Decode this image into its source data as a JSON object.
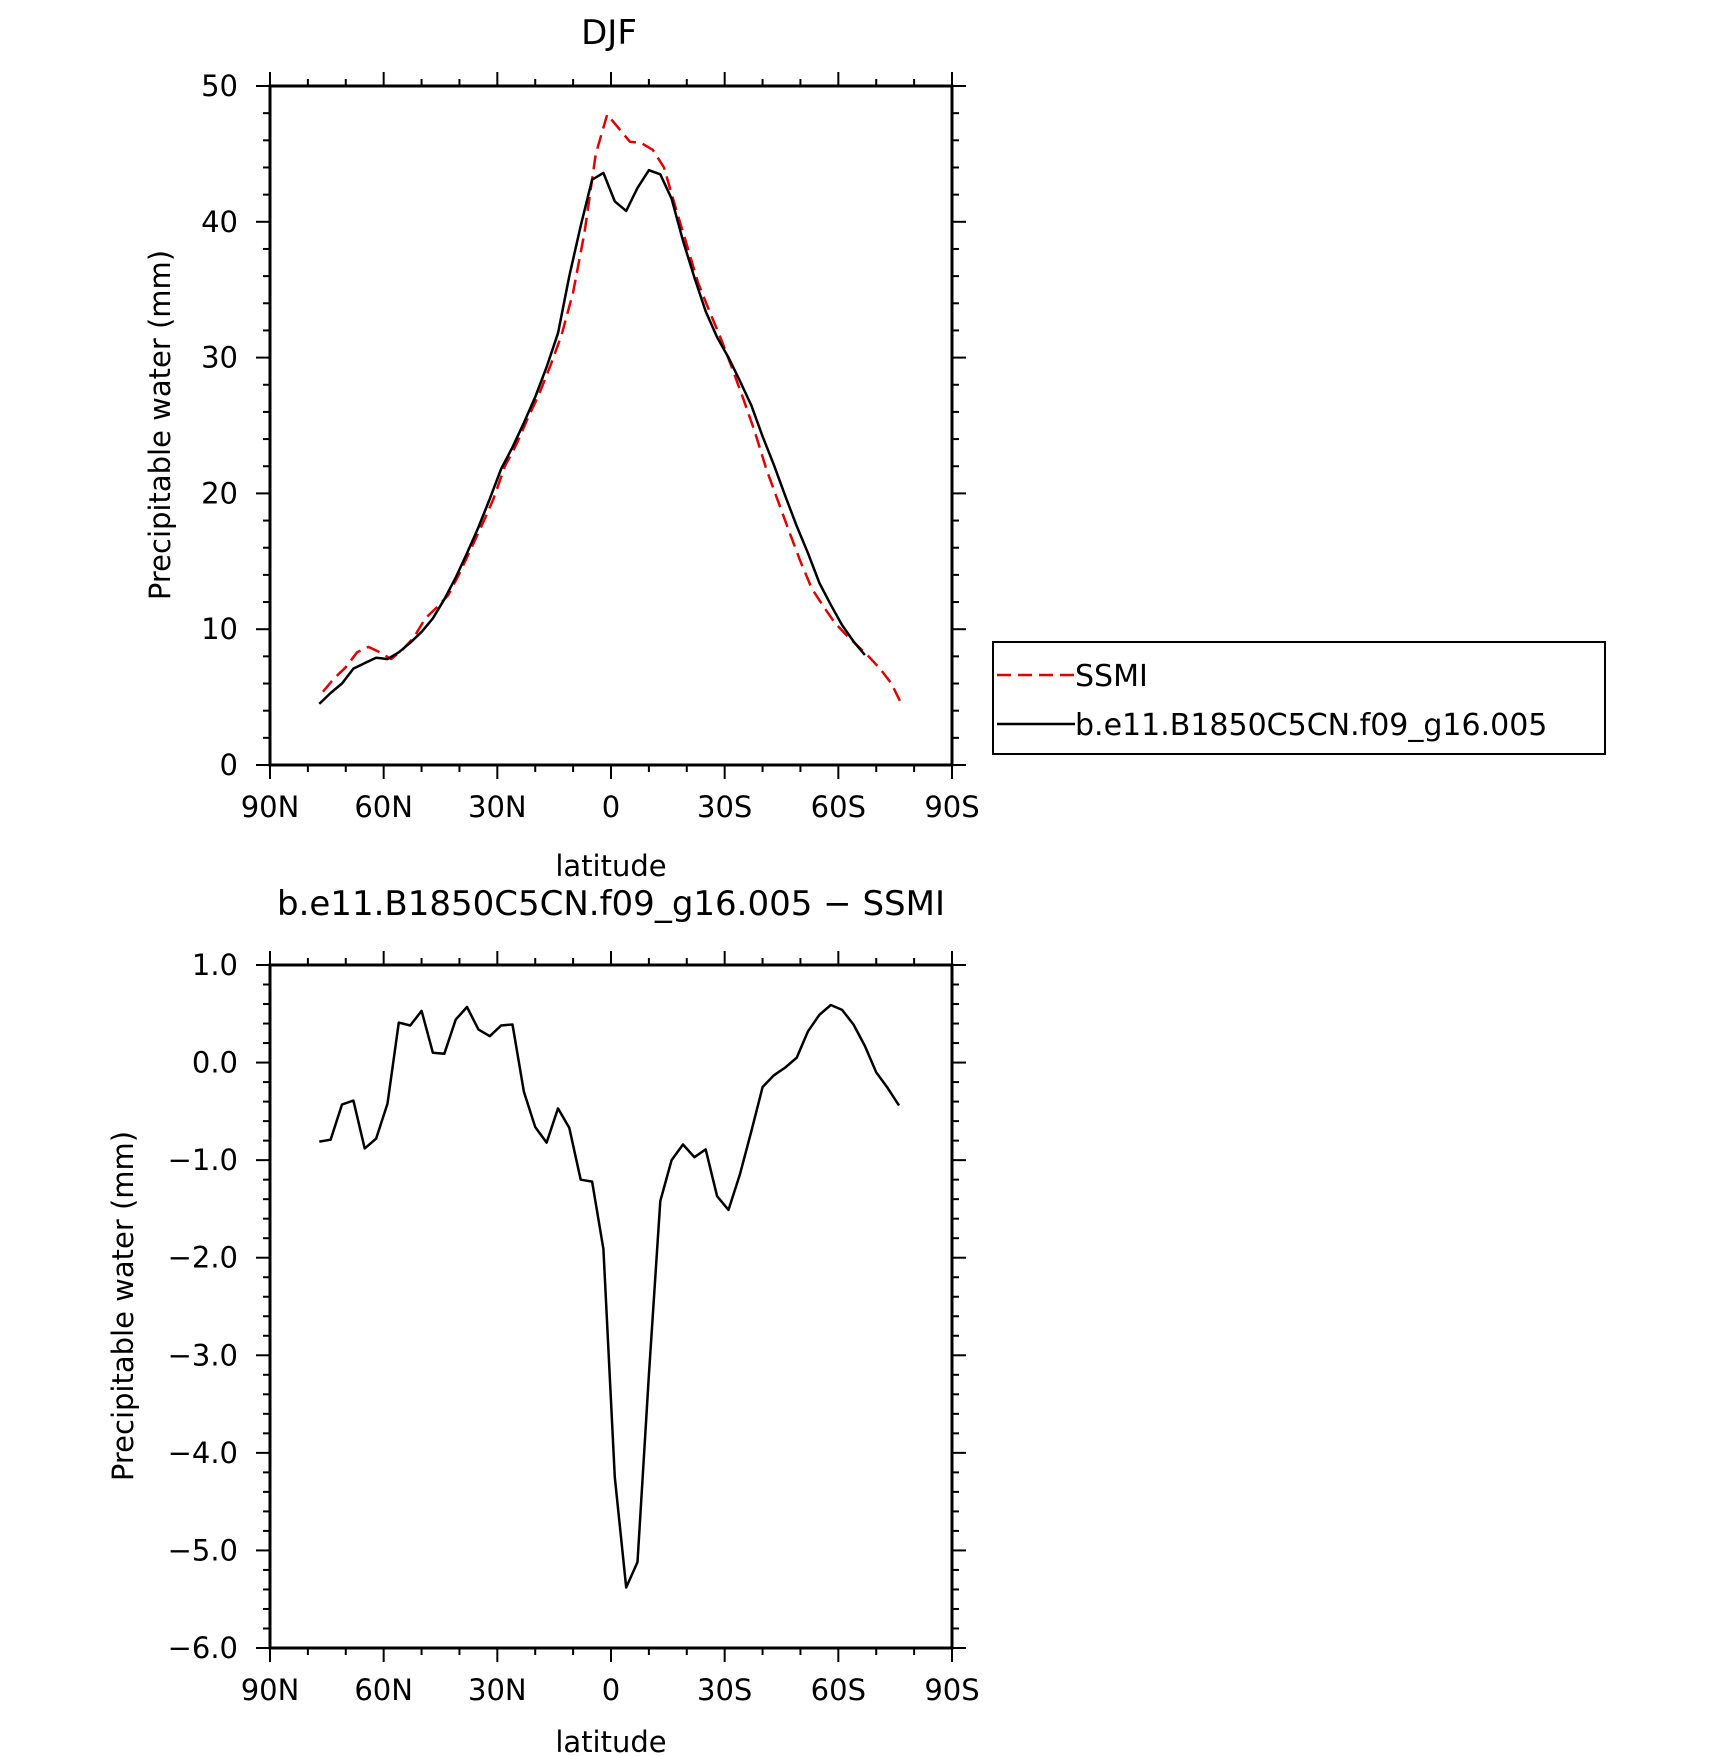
{
  "chart_data": [
    {
      "type": "line",
      "title": "DJF",
      "xlabel": "latitude",
      "ylabel": "Precipitable water (mm)",
      "xlim": [
        90,
        -90
      ],
      "ylim": [
        0,
        50
      ],
      "xticks": [
        {
          "value": 90,
          "label": "90N"
        },
        {
          "value": 60,
          "label": "60N"
        },
        {
          "value": 30,
          "label": "30N"
        },
        {
          "value": 0,
          "label": "0"
        },
        {
          "value": -30,
          "label": "30S"
        },
        {
          "value": -60,
          "label": "60S"
        },
        {
          "value": -90,
          "label": "90S"
        }
      ],
      "yticks": [
        {
          "value": 0,
          "label": "0"
        },
        {
          "value": 10,
          "label": "10"
        },
        {
          "value": 20,
          "label": "20"
        },
        {
          "value": 30,
          "label": "30"
        },
        {
          "value": 40,
          "label": "40"
        },
        {
          "value": 50,
          "label": "50"
        }
      ],
      "grid": false,
      "legend_placement": "right",
      "series": [
        {
          "name": "SSMI",
          "color": "#e00000",
          "dash": "dashed",
          "points": [
            [
              76,
              5.4
            ],
            [
              73,
              6.4
            ],
            [
              70,
              7.2
            ],
            [
              67,
              8.3
            ],
            [
              64,
              8.7
            ],
            [
              61,
              8.3
            ],
            [
              58,
              7.8
            ],
            [
              55,
              8.5
            ],
            [
              52,
              9.4
            ],
            [
              49,
              10.8
            ],
            [
              46,
              11.6
            ],
            [
              43,
              12.5
            ],
            [
              40,
              14.1
            ],
            [
              37,
              15.9
            ],
            [
              34,
              17.7
            ],
            [
              31,
              19.6
            ],
            [
              28,
              22.0
            ],
            [
              25,
              23.6
            ],
            [
              22,
              25.5
            ],
            [
              19,
              27.3
            ],
            [
              16,
              29.4
            ],
            [
              13,
              31.7
            ],
            [
              10,
              34.8
            ],
            [
              7,
              39.2
            ],
            [
              4,
              45.0
            ],
            [
              1,
              47.9
            ],
            [
              -2,
              46.9
            ],
            [
              -5,
              45.9
            ],
            [
              -8,
              45.8
            ],
            [
              -11,
              45.3
            ],
            [
              -14,
              44.0
            ],
            [
              -17,
              41.1
            ],
            [
              -20,
              38.3
            ],
            [
              -23,
              35.5
            ],
            [
              -26,
              33.4
            ],
            [
              -29,
              31.4
            ],
            [
              -32,
              29.2
            ],
            [
              -35,
              26.9
            ],
            [
              -38,
              24.5
            ],
            [
              -41,
              21.8
            ],
            [
              -44,
              19.5
            ],
            [
              -47,
              17.2
            ],
            [
              -50,
              15.0
            ],
            [
              -53,
              13.0
            ],
            [
              -56,
              11.7
            ],
            [
              -59,
              10.5
            ],
            [
              -62,
              9.6
            ],
            [
              -65,
              8.8
            ],
            [
              -68,
              8.0
            ],
            [
              -71,
              7.1
            ],
            [
              -74,
              6.0
            ],
            [
              -77,
              4.3
            ]
          ]
        },
        {
          "name": "b.e11.B1850C5CN.f09_g16.005",
          "color": "#000000",
          "dash": "solid",
          "points": [
            [
              77,
              4.5
            ],
            [
              74,
              5.3
            ],
            [
              71,
              6.0
            ],
            [
              68,
              7.1
            ],
            [
              65,
              7.5
            ],
            [
              62,
              7.9
            ],
            [
              59,
              7.8
            ],
            [
              56,
              8.3
            ],
            [
              53,
              9.0
            ],
            [
              50,
              9.8
            ],
            [
              47,
              10.8
            ],
            [
              44,
              12.2
            ],
            [
              41,
              13.8
            ],
            [
              38,
              15.6
            ],
            [
              35,
              17.5
            ],
            [
              32,
              19.6
            ],
            [
              29,
              21.8
            ],
            [
              26,
              23.4
            ],
            [
              23,
              25.2
            ],
            [
              20,
              27.1
            ],
            [
              17,
              29.3
            ],
            [
              14,
              31.8
            ],
            [
              11,
              36.0
            ],
            [
              8,
              39.7
            ],
            [
              5,
              43.1
            ],
            [
              2,
              43.6
            ],
            [
              -1,
              41.5
            ],
            [
              -4,
              40.8
            ],
            [
              -7,
              42.5
            ],
            [
              -10,
              43.8
            ],
            [
              -13,
              43.5
            ],
            [
              -16,
              41.7
            ],
            [
              -19,
              38.6
            ],
            [
              -22,
              35.9
            ],
            [
              -25,
              33.4
            ],
            [
              -28,
              31.5
            ],
            [
              -31,
              30.0
            ],
            [
              -34,
              28.3
            ],
            [
              -37,
              26.5
            ],
            [
              -40,
              24.2
            ],
            [
              -43,
              22.1
            ],
            [
              -46,
              19.8
            ],
            [
              -49,
              17.6
            ],
            [
              -52,
              15.6
            ],
            [
              -55,
              13.4
            ],
            [
              -58,
              11.8
            ],
            [
              -61,
              10.3
            ],
            [
              -64,
              9.1
            ],
            [
              -67,
              8.1
            ]
          ]
        }
      ],
      "legend": [
        {
          "label": "SSMI",
          "color": "#e00000",
          "dash": "dashed"
        },
        {
          "label": "b.e11.B1850C5CN.f09_g16.005",
          "color": "#000000",
          "dash": "solid"
        }
      ]
    },
    {
      "type": "line",
      "title": "b.e11.B1850C5CN.f09_g16.005 − SSMI",
      "xlabel": "latitude",
      "ylabel": "Precipitable water (mm)",
      "xlim": [
        90,
        -90
      ],
      "ylim": [
        -6,
        1
      ],
      "xticks": [
        {
          "value": 90,
          "label": "90N"
        },
        {
          "value": 60,
          "label": "60N"
        },
        {
          "value": 30,
          "label": "30N"
        },
        {
          "value": 0,
          "label": "0"
        },
        {
          "value": -30,
          "label": "30S"
        },
        {
          "value": -60,
          "label": "60S"
        },
        {
          "value": -90,
          "label": "90S"
        }
      ],
      "yticks": [
        {
          "value": 1,
          "label": "1.0"
        },
        {
          "value": 0,
          "label": "0.0"
        },
        {
          "value": -1,
          "label": "−1.0"
        },
        {
          "value": -2,
          "label": "−2.0"
        },
        {
          "value": -3,
          "label": "−3.0"
        },
        {
          "value": -4,
          "label": "−4.0"
        },
        {
          "value": -5,
          "label": "−5.0"
        },
        {
          "value": -6,
          "label": "−6.0"
        }
      ],
      "grid": false,
      "series": [
        {
          "color": "#000000",
          "dash": "solid",
          "points": [
            [
              77,
              -0.81
            ],
            [
              74,
              -0.79
            ],
            [
              71,
              -0.43
            ],
            [
              68,
              -0.39
            ],
            [
              65,
              -0.88
            ],
            [
              62,
              -0.78
            ],
            [
              59,
              -0.42
            ],
            [
              56,
              0.41
            ],
            [
              53,
              0.38
            ],
            [
              50,
              0.53
            ],
            [
              47,
              0.1
            ],
            [
              44,
              0.09
            ],
            [
              41,
              0.44
            ],
            [
              38,
              0.57
            ],
            [
              35,
              0.34
            ],
            [
              32,
              0.27
            ],
            [
              29,
              0.38
            ],
            [
              26,
              0.39
            ],
            [
              23,
              -0.3
            ],
            [
              20,
              -0.66
            ],
            [
              17,
              -0.82
            ],
            [
              14,
              -0.47
            ],
            [
              11,
              -0.67
            ],
            [
              8,
              -1.2
            ],
            [
              5,
              -1.22
            ],
            [
              2,
              -1.91
            ],
            [
              -1,
              -4.25
            ],
            [
              -4,
              -5.38
            ],
            [
              -7,
              -5.12
            ],
            [
              -10,
              -3.2
            ],
            [
              -13,
              -1.42
            ],
            [
              -16,
              -1.0
            ],
            [
              -19,
              -0.84
            ],
            [
              -22,
              -0.97
            ],
            [
              -25,
              -0.89
            ],
            [
              -28,
              -1.37
            ],
            [
              -31,
              -1.51
            ],
            [
              -34,
              -1.15
            ],
            [
              -37,
              -0.71
            ],
            [
              -40,
              -0.25
            ],
            [
              -43,
              -0.13
            ],
            [
              -46,
              -0.05
            ],
            [
              -49,
              0.05
            ],
            [
              -52,
              0.32
            ],
            [
              -55,
              0.49
            ],
            [
              -58,
              0.59
            ],
            [
              -61,
              0.54
            ],
            [
              -64,
              0.39
            ],
            [
              -67,
              0.17
            ],
            [
              -70,
              -0.1
            ],
            [
              -73,
              -0.26
            ],
            [
              -76,
              -0.44
            ]
          ]
        }
      ]
    }
  ]
}
